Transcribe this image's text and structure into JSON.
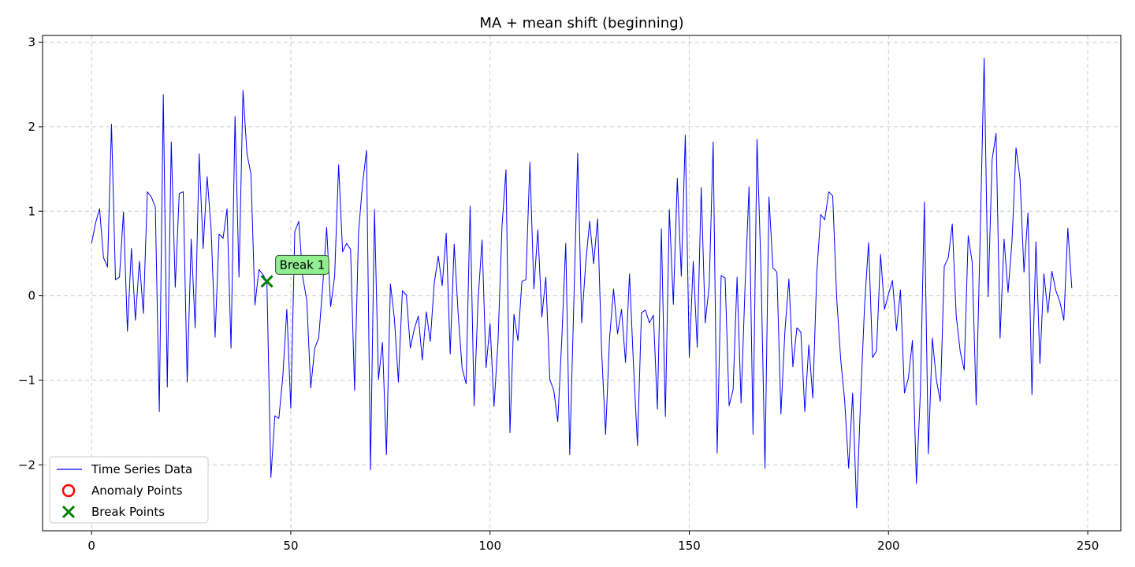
{
  "chart_data": {
    "type": "line",
    "title": "MA + mean shift (beginning)",
    "xlabel": "",
    "ylabel": "",
    "xlim": [
      -12.3,
      258.3
    ],
    "ylim": [
      -2.78,
      3.08
    ],
    "xticks": [
      0,
      50,
      100,
      150,
      200,
      250
    ],
    "yticks": [
      -2,
      -1,
      0,
      1,
      2,
      3
    ],
    "xtick_labels": [
      "0",
      "50",
      "100",
      "150",
      "200",
      "250"
    ],
    "ytick_labels": [
      "−2",
      "−1",
      "0",
      "1",
      "2",
      "3"
    ],
    "grid": true,
    "legend_position": "lower-left",
    "series": [
      {
        "name": "Time Series Data",
        "color": "#0000ff",
        "x_start": 0,
        "values": [
          0.62,
          0.86,
          1.03,
          0.45,
          0.34,
          2.03,
          0.19,
          0.22,
          0.99,
          -0.42,
          0.56,
          -0.29,
          0.41,
          -0.21,
          1.23,
          1.17,
          1.05,
          -1.37,
          2.38,
          -1.08,
          1.82,
          0.1,
          1.21,
          1.23,
          -1.02,
          0.67,
          -0.38,
          1.68,
          0.56,
          1.41,
          0.79,
          -0.49,
          0.73,
          0.68,
          1.03,
          -0.62,
          2.12,
          0.22,
          2.43,
          1.68,
          1.44,
          -0.11,
          0.31,
          0.25,
          0.17,
          -2.15,
          -1.42,
          -1.45,
          -0.95,
          -0.16,
          -1.33,
          0.76,
          0.88,
          0.22,
          -0.05,
          -1.09,
          -0.62,
          -0.5,
          0.11,
          0.81,
          -0.13,
          0.23,
          1.55,
          0.52,
          0.62,
          0.55,
          -1.12,
          0.75,
          1.32,
          1.72,
          -2.06,
          1.02,
          -0.99,
          -0.55,
          -1.88,
          0.14,
          -0.27,
          -1.02,
          0.06,
          0.01,
          -0.62,
          -0.39,
          -0.24,
          -0.76,
          -0.19,
          -0.54,
          0.15,
          0.47,
          0.12,
          0.74,
          -0.69,
          0.61,
          -0.21,
          -0.86,
          -1.04,
          1.06,
          -1.3,
          -0.05,
          0.66,
          -0.85,
          -0.33,
          -1.31,
          -0.54,
          0.82,
          1.49,
          -1.62,
          -0.22,
          -0.53,
          0.17,
          0.19,
          1.58,
          0.08,
          0.78,
          -0.25,
          0.22,
          -0.99,
          -1.12,
          -1.49,
          -0.52,
          0.62,
          -1.88,
          -0.14,
          1.69,
          -0.32,
          0.38,
          0.88,
          0.38,
          0.91,
          -0.65,
          -1.64,
          -0.5,
          0.08,
          -0.45,
          -0.16,
          -0.79,
          0.26,
          -0.82,
          -1.77,
          -0.2,
          -0.17,
          -0.32,
          -0.23,
          -1.34,
          0.79,
          -1.43,
          1.02,
          -0.1,
          1.39,
          0.23,
          1.9,
          -0.73,
          0.41,
          -0.61,
          1.28,
          -0.32,
          0.12,
          1.82,
          -1.86,
          0.24,
          0.21,
          -1.3,
          -1.11,
          0.22,
          -1.27,
          0.11,
          1.29,
          -1.64,
          1.85,
          0.31,
          -2.04,
          1.17,
          0.33,
          0.28,
          -1.4,
          -0.42,
          0.2,
          -0.84,
          -0.38,
          -0.43,
          -1.37,
          -0.58,
          -1.21,
          0.27,
          0.96,
          0.9,
          1.23,
          1.18,
          -0.03,
          -0.75,
          -1.24,
          -2.04,
          -1.15,
          -2.51,
          -1.22,
          -0.11,
          0.63,
          -0.73,
          -0.65,
          0.49,
          -0.16,
          0.02,
          0.18,
          -0.41,
          0.07,
          -1.15,
          -0.97,
          -0.53,
          -2.22,
          -1.14,
          1.11,
          -1.87,
          -0.5,
          -0.99,
          -1.25,
          0.35,
          0.45,
          0.85,
          -0.24,
          -0.66,
          -0.88,
          0.71,
          0.4,
          -1.29,
          0.7,
          2.81,
          -0.01,
          1.61,
          1.92,
          -0.5,
          0.67,
          0.04,
          0.65,
          1.75,
          1.39,
          0.28,
          0.98,
          -1.17,
          0.64,
          -0.8,
          0.26,
          -0.2,
          0.29,
          0.06,
          -0.07,
          -0.29,
          0.8,
          0.09
        ]
      }
    ],
    "anomaly_points": {
      "name": "Anomaly Points",
      "color": "#ff0000",
      "points": []
    },
    "break_points": {
      "name": "Break Points",
      "color": "#008000",
      "points": [
        {
          "x": 44,
          "y": 0.17,
          "label": "Break 1"
        }
      ]
    },
    "annotation_style": {
      "fill": "#90ee90",
      "stroke": "#2f4f2f"
    },
    "grid_color": "#cccccc"
  }
}
